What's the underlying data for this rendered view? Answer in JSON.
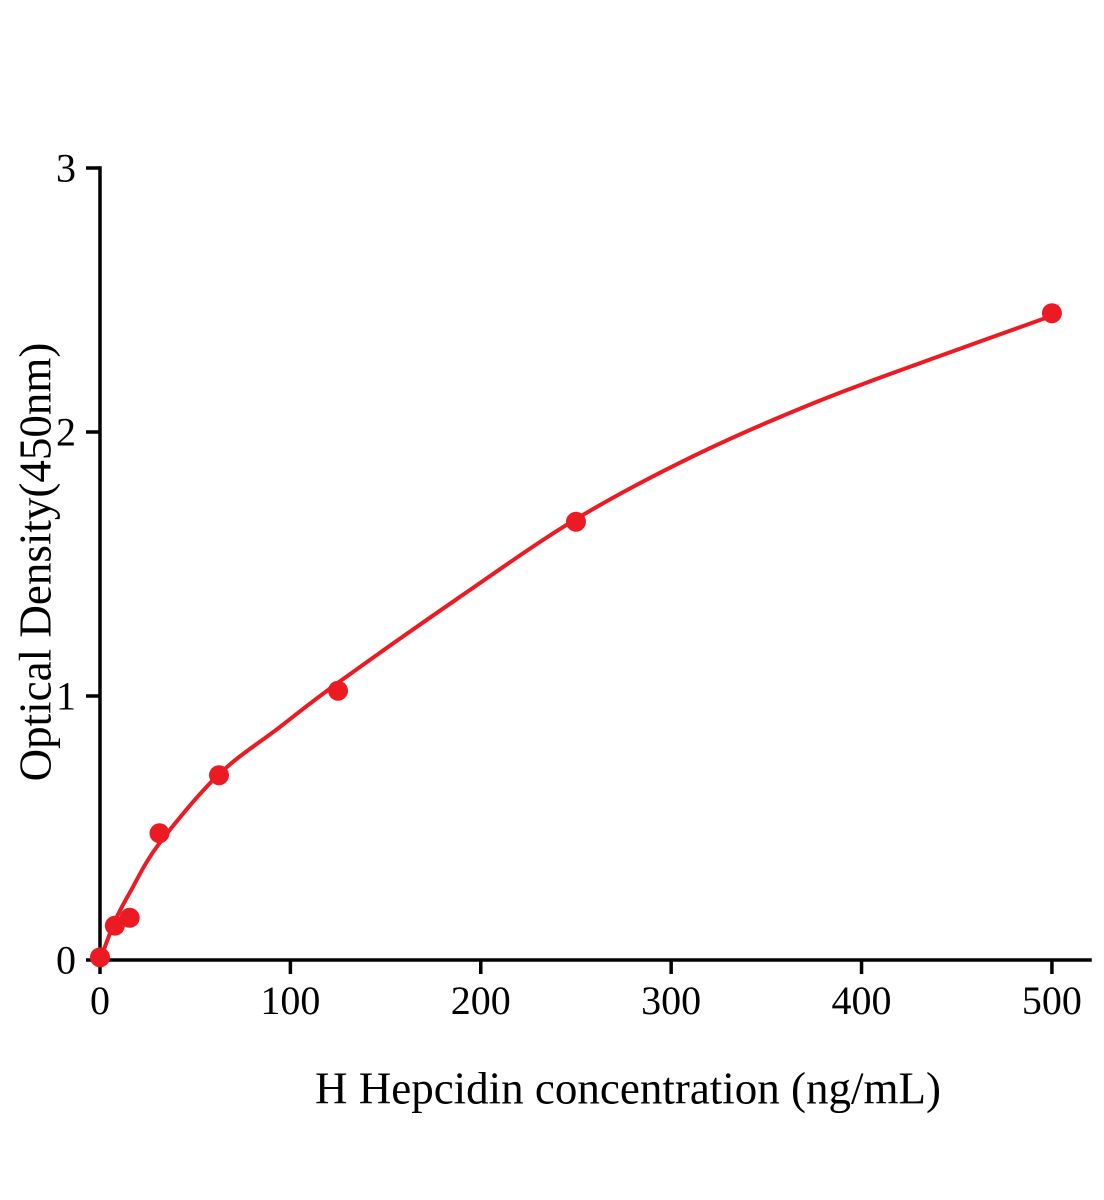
{
  "page": {
    "background": "#ffffff"
  },
  "chart_data": {
    "type": "scatter",
    "title": "",
    "xlabel": "H Hepcidin concentration (ng/mL)",
    "ylabel": "Optical Density(450nm)",
    "legend": null,
    "grid": false,
    "x_domain": [
      0,
      520
    ],
    "y_domain": [
      0,
      3
    ],
    "x_ticks": [
      "0",
      "100",
      "200",
      "300",
      "400",
      "500"
    ],
    "x_tick_values": [
      0,
      100,
      200,
      300,
      400,
      500
    ],
    "y_ticks": [
      "0",
      "1",
      "2",
      "3"
    ],
    "y_tick_values": [
      0,
      1,
      2,
      3
    ],
    "points": [
      {
        "x": 0,
        "y": 0.01
      },
      {
        "x": 7.8,
        "y": 0.13
      },
      {
        "x": 15.6,
        "y": 0.16
      },
      {
        "x": 31.25,
        "y": 0.48
      },
      {
        "x": 62.5,
        "y": 0.7
      },
      {
        "x": 125,
        "y": 1.02
      },
      {
        "x": 250,
        "y": 1.66
      },
      {
        "x": 500,
        "y": 2.45
      }
    ],
    "fit_curve": [
      {
        "x": 0,
        "y": 0.0
      },
      {
        "x": 8,
        "y": 0.15
      },
      {
        "x": 16,
        "y": 0.26
      },
      {
        "x": 31,
        "y": 0.44
      },
      {
        "x": 62,
        "y": 0.7
      },
      {
        "x": 94,
        "y": 0.88
      },
      {
        "x": 125,
        "y": 1.05
      },
      {
        "x": 188,
        "y": 1.37
      },
      {
        "x": 250,
        "y": 1.67
      },
      {
        "x": 312,
        "y": 1.91
      },
      {
        "x": 375,
        "y": 2.11
      },
      {
        "x": 438,
        "y": 2.28
      },
      {
        "x": 500,
        "y": 2.44
      }
    ],
    "colors": {
      "accent": "#EC1B23",
      "axis": "#000000",
      "text": "#000000"
    },
    "marker_radius": 10,
    "curve_width": 4,
    "axis_width": 3.5
  }
}
